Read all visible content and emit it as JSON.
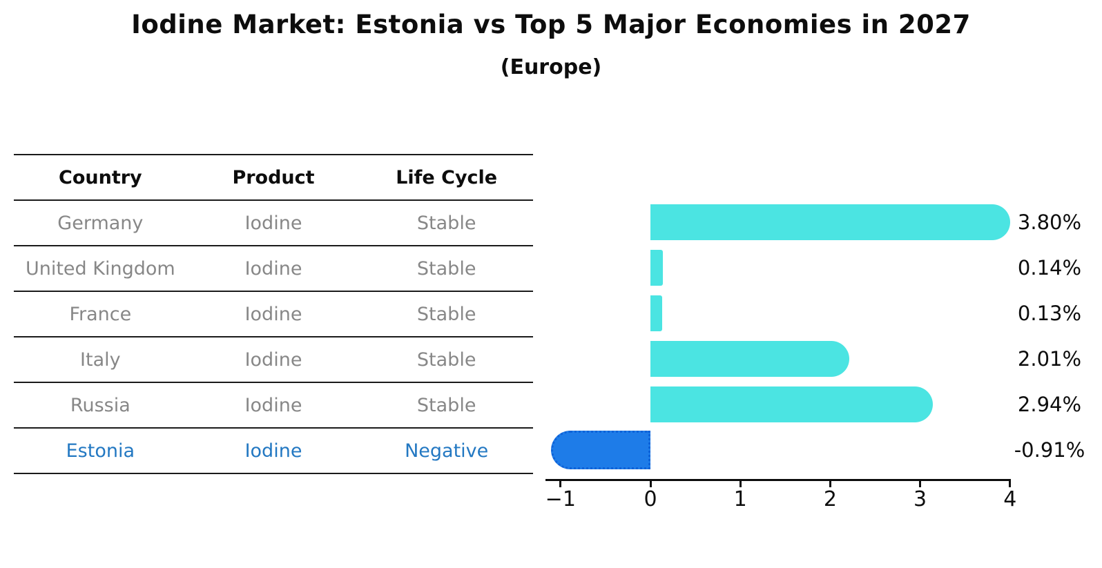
{
  "header": {
    "title": "Iodine Market: Estonia vs Top 5 Major Economies in 2027",
    "subtitle": "(Europe)"
  },
  "table": {
    "columns": [
      "Country",
      "Product",
      "Life Cycle"
    ],
    "rows": [
      {
        "country": "Germany",
        "product": "Iodine",
        "life_cycle": "Stable",
        "highlighted": false
      },
      {
        "country": "United Kingdom",
        "product": "Iodine",
        "life_cycle": "Stable",
        "highlighted": false
      },
      {
        "country": "France",
        "product": "Iodine",
        "life_cycle": "Stable",
        "highlighted": false
      },
      {
        "country": "Italy",
        "product": "Iodine",
        "life_cycle": "Stable",
        "highlighted": false
      },
      {
        "country": "Russia",
        "product": "Iodine",
        "life_cycle": "Stable",
        "highlighted": false
      },
      {
        "country": "Estonia",
        "product": "Iodine",
        "life_cycle": "Negative",
        "highlighted": true
      }
    ]
  },
  "chart_data": {
    "type": "bar",
    "orientation": "horizontal",
    "title": "Iodine Market: Estonia vs Top 5 Major Economies in 2027",
    "subtitle": "(Europe)",
    "categories": [
      "Germany",
      "United Kingdom",
      "France",
      "Italy",
      "Russia",
      "Estonia"
    ],
    "values": [
      3.8,
      0.14,
      0.13,
      2.01,
      2.94,
      -0.91
    ],
    "value_labels": [
      "3.80%",
      "0.14%",
      "0.13%",
      "2.01%",
      "2.94%",
      "-0.91%"
    ],
    "xlim": [
      -1.17,
      4.01
    ],
    "xticks": [
      -1,
      0,
      1,
      2,
      3,
      4
    ],
    "xtick_labels": [
      "−1",
      "0",
      "1",
      "2",
      "3",
      "4"
    ],
    "highlight_index": 5,
    "grid": false,
    "legend": false
  },
  "colors": {
    "bar": "#4be4e2",
    "highlight_bar": "#1e7ce8",
    "highlight_border": "#0e62d8",
    "highlight_text": "#2378c2",
    "table_text": "#878787",
    "heading_text": "#0d0d0d"
  }
}
